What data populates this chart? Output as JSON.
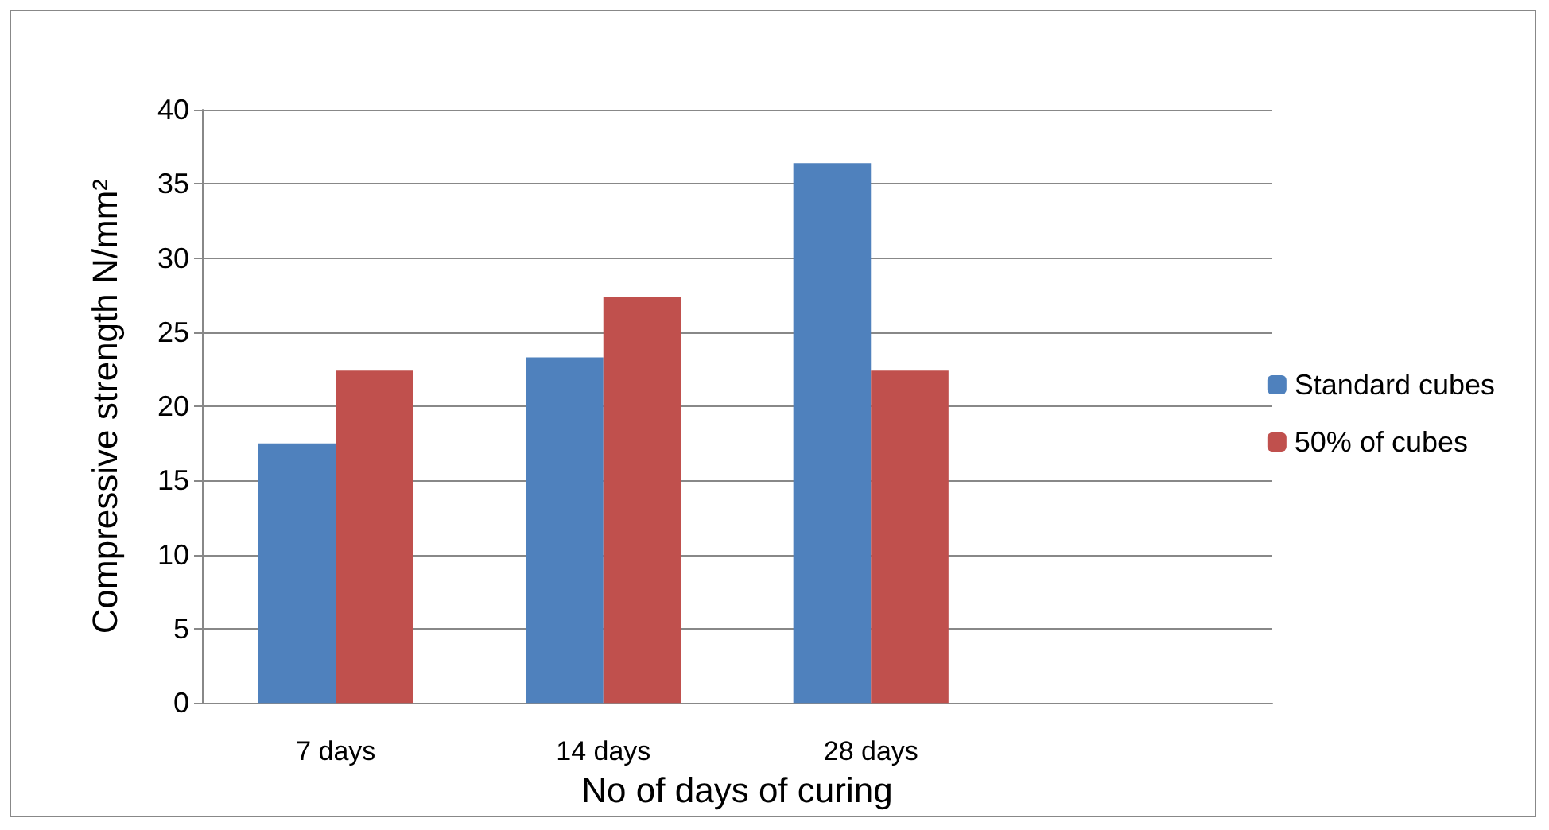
{
  "chart_data": {
    "type": "bar",
    "xlabel": "No of days of curing",
    "ylabel": "Compressive strength N/mm²",
    "categories": [
      "7 days",
      "14 days",
      "28 days",
      null
    ],
    "series": [
      {
        "name": "Standard cubes",
        "color": "#4f81bd",
        "values": [
          17.5,
          23.3,
          36.4,
          null
        ]
      },
      {
        "name": "50% of cubes",
        "color": "#c0504d",
        "values": [
          22.4,
          27.4,
          22.4,
          null
        ]
      }
    ],
    "ylim": [
      0,
      40
    ],
    "yticks": [
      0,
      5,
      10,
      15,
      20,
      25,
      30,
      35,
      40
    ],
    "grid": "y",
    "legend": "right"
  }
}
